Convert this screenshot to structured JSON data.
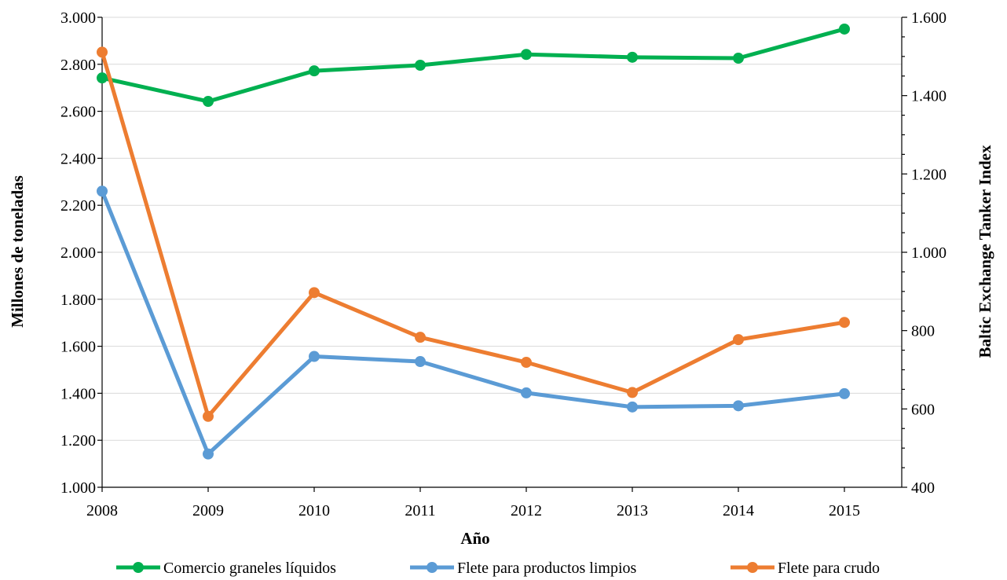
{
  "chart_data": {
    "type": "line",
    "categories": [
      "2008",
      "2009",
      "2010",
      "2011",
      "2012",
      "2013",
      "2014",
      "2015"
    ],
    "xlabel": "Año",
    "ylabel_left": "Millones de toneladas",
    "ylabel_right": "Baltic Exchange Tanker Index",
    "ylim_left": [
      1000,
      3000
    ],
    "ylim_right": [
      400,
      1600
    ],
    "yticks_left": [
      "1.000",
      "1.200",
      "1.400",
      "1.600",
      "1.800",
      "2.000",
      "2.200",
      "2.400",
      "2.600",
      "2.800",
      "3.000"
    ],
    "yticks_right": [
      "400",
      "600",
      "800",
      "1.000",
      "1.200",
      "1.400",
      "1.600"
    ],
    "grid": true,
    "legend_position": "bottom",
    "series": [
      {
        "name": "Comercio graneles líquidos",
        "axis": "left",
        "color": "#00b050",
        "values": [
          2742,
          2642,
          2772,
          2796,
          2842,
          2830,
          2826,
          2950
        ]
      },
      {
        "name": "Flete para productos limpios",
        "axis": "right",
        "color": "#5b9bd5",
        "values": [
          1156,
          485,
          734,
          721,
          641,
          605,
          608,
          639
        ]
      },
      {
        "name": "Flete para crudo",
        "axis": "right",
        "color": "#ed7d31",
        "values": [
          1511,
          581,
          897,
          783,
          719,
          642,
          777,
          821
        ]
      }
    ]
  }
}
